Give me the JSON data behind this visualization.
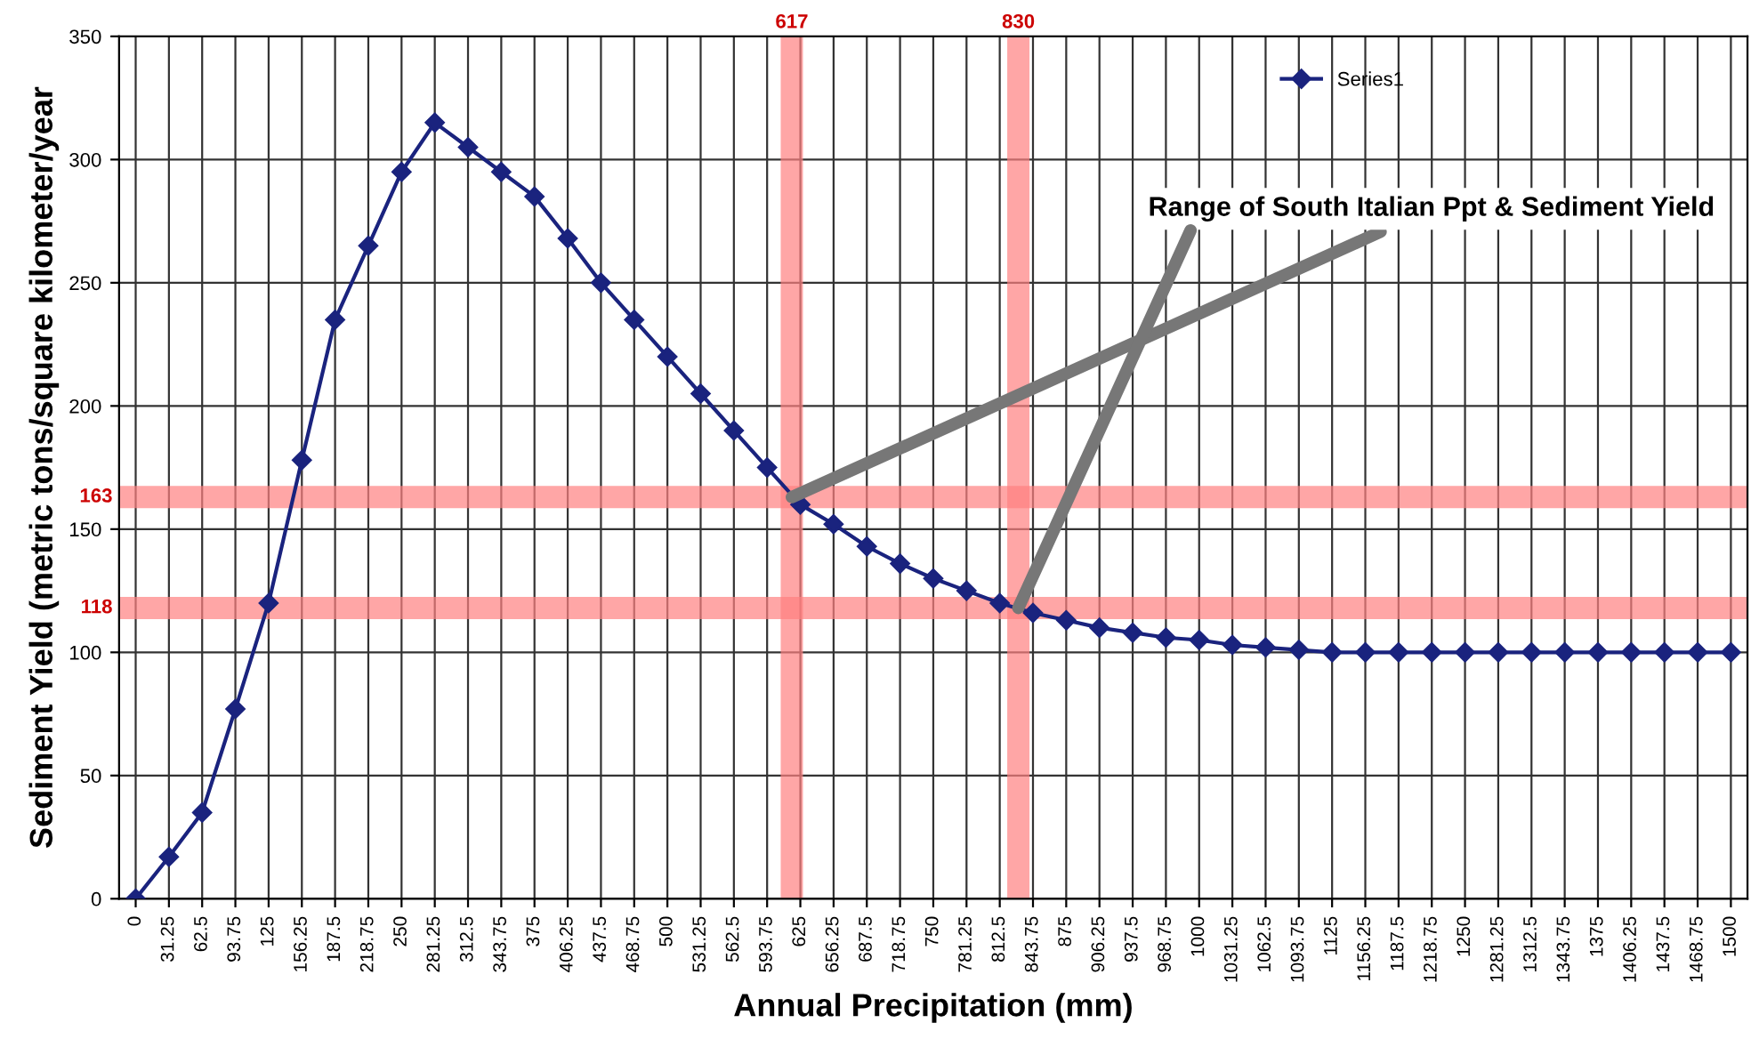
{
  "chart_data": {
    "type": "line",
    "xlabel": "Annual Precipitation (mm)",
    "ylabel": "Sediment Yield (metric tons/square kilometer/year",
    "x": [
      0,
      31.25,
      62.5,
      93.75,
      125,
      156.25,
      187.5,
      218.75,
      250,
      281.25,
      312.5,
      343.75,
      375,
      406.25,
      437.5,
      468.75,
      500,
      531.25,
      562.5,
      593.75,
      625,
      656.25,
      687.5,
      718.75,
      750,
      781.25,
      812.5,
      843.75,
      875,
      906.25,
      937.5,
      968.75,
      1000,
      1031.25,
      1062.5,
      1093.75,
      1125,
      1156.25,
      1187.5,
      1218.75,
      1250,
      1281.25,
      1312.5,
      1343.75,
      1375,
      1406.25,
      1437.5,
      1468.75,
      1500
    ],
    "series": [
      {
        "name": "Series1",
        "color": "#1a237e",
        "values": [
          0,
          17,
          35,
          77,
          120,
          178,
          235,
          265,
          295,
          315,
          305,
          295,
          285,
          268,
          250,
          235,
          220,
          205,
          190,
          175,
          160,
          152,
          143,
          136,
          130,
          125,
          120,
          116,
          113,
          110,
          108,
          106,
          105,
          103,
          102,
          101,
          100,
          100,
          100,
          100,
          100,
          100,
          100,
          100,
          100,
          100,
          100,
          100,
          100
        ]
      }
    ],
    "xlim": [
      -15.625,
      1515.625
    ],
    "xticks": [
      0,
      31.25,
      62.5,
      93.75,
      125,
      156.25,
      187.5,
      218.75,
      250,
      281.25,
      312.5,
      343.75,
      375,
      406.25,
      437.5,
      468.75,
      500,
      531.25,
      562.5,
      593.75,
      625,
      656.25,
      687.5,
      718.75,
      750,
      781.25,
      812.5,
      843.75,
      875,
      906.25,
      937.5,
      968.75,
      1000,
      1031.25,
      1062.5,
      1093.75,
      1125,
      1156.25,
      1187.5,
      1218.75,
      1250,
      1281.25,
      1312.5,
      1343.75,
      1375,
      1406.25,
      1437.5,
      1468.75,
      1500
    ],
    "ylim": [
      0,
      350
    ],
    "yticks": [
      0,
      50,
      100,
      150,
      200,
      250,
      300,
      350
    ],
    "ref_lines": [
      {
        "axis": "x",
        "value": 617,
        "label": "617",
        "color": "#ff8080"
      },
      {
        "axis": "x",
        "value": 830,
        "label": "830",
        "color": "#ff8080"
      },
      {
        "axis": "y",
        "value": 163,
        "label": "163",
        "color": "#ff8080"
      },
      {
        "axis": "y",
        "value": 118,
        "label": "118",
        "color": "#ff8080"
      }
    ],
    "annotations": [
      {
        "text": "Range of South Italian Ppt & Sediment Yield",
        "x": 617,
        "y": 163
      }
    ],
    "grid": true,
    "legend": "top right",
    "marker": "diamond",
    "line_style": "solid"
  }
}
